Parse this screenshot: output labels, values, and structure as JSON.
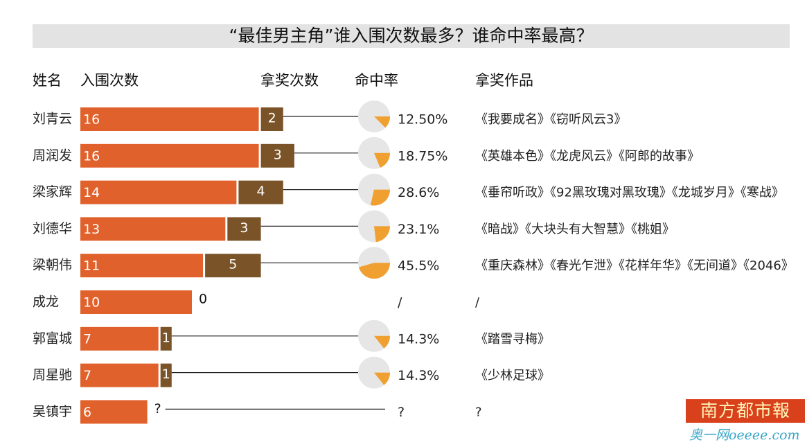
{
  "title": "“最佳男主角”谁入围次数最多？谁命中率最高？",
  "headers": {
    "name": "姓名",
    "nominations": "入围次数",
    "wins": "拿奖次数",
    "rate": "命中率",
    "works": "拿奖作品"
  },
  "colors": {
    "nomination_bar": "#e0612b",
    "win_bar": "#7a5428",
    "pie_bg": "#e6e6e6",
    "pie_slice": "#f0a030",
    "title_bg": "#e3e3e3"
  },
  "chart_data": {
    "type": "bar",
    "categories": [
      "刘青云",
      "周润发",
      "梁家辉",
      "刘德华",
      "梁朝伟",
      "成龙",
      "郭富城",
      "周星驰",
      "吴镇宇"
    ],
    "series": [
      {
        "name": "入围次数",
        "values": [
          16,
          16,
          14,
          13,
          11,
          10,
          7,
          7,
          6
        ]
      },
      {
        "name": "拿奖次数",
        "values": [
          2,
          3,
          4,
          3,
          5,
          0,
          1,
          1,
          "?"
        ]
      }
    ],
    "nominations_labels": [
      "16",
      "16",
      "14",
      "13",
      "11",
      "10",
      "7",
      "7",
      "6"
    ],
    "wins_labels": [
      "2",
      "3",
      "4",
      "3",
      "5",
      "0",
      "1",
      "1",
      "?"
    ],
    "hit_rate_labels": [
      "12.50%",
      "18.75%",
      "28.6%",
      "23.1%",
      "45.5%",
      "/",
      "14.3%",
      "14.3%",
      "?"
    ],
    "hit_rate_values": [
      0.125,
      0.1875,
      0.286,
      0.231,
      0.455,
      null,
      0.143,
      0.143,
      null
    ],
    "works": [
      "《我要成名》《窃听风云3》",
      "《英雄本色》《龙虎风云》《阿郎的故事》",
      "《垂帘听政》《92黑玫瑰对黑玫瑰》《龙城岁月》《寒战》",
      "《暗战》《大块头有大智慧》《桃姐》",
      "《重庆森林》《春光乍泄》《花样年华》《无间道》《2046》",
      "/",
      "《踏雪寻梅》",
      "《少林足球》",
      "?"
    ],
    "xlim": [
      0,
      16
    ]
  },
  "logo": {
    "text": "南方都市報",
    "watermark": "奥一网oeeee.com"
  }
}
